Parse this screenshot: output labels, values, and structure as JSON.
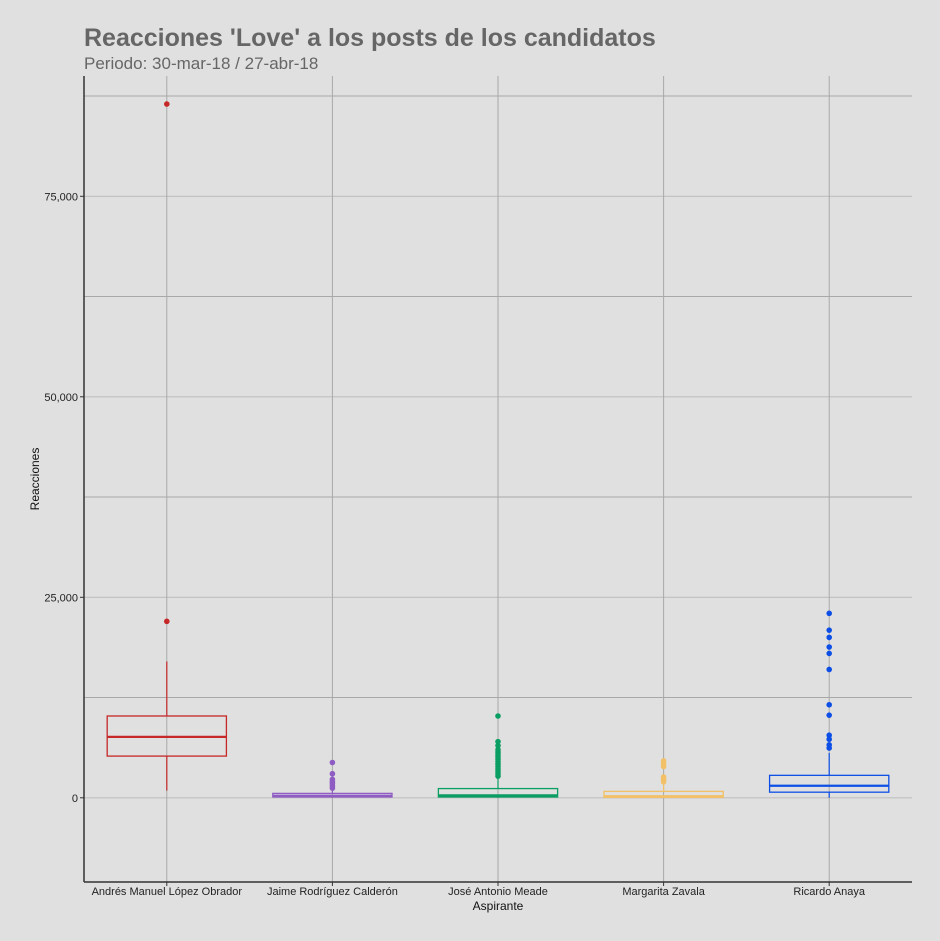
{
  "title": "Reacciones 'Love' a los posts de los candidatos",
  "subtitle": "Periodo: 30-mar-18 / 27-abr-18",
  "chart_data": {
    "type": "boxplot",
    "xlabel": "Aspirante",
    "ylabel": "Reacciones",
    "ylim": [
      -10500,
      90000
    ],
    "yticks": [
      0,
      25000,
      50000,
      75000
    ],
    "ytick_labels": [
      "0",
      "25,000",
      "50,000",
      "75,000"
    ],
    "grid": true,
    "legend": "none",
    "categories": [
      "Andrés Manuel López Obrador",
      "Jaime Rodríguez Calderón",
      "José Antonio Meade",
      "Margarita Zavala",
      "Ricardo Anaya"
    ],
    "series": [
      {
        "color": "#c62828",
        "q1": 5200,
        "median": 7600,
        "q3": 10200,
        "whisker_low": 900,
        "whisker_high": 17000,
        "outliers": [
          22000,
          86500
        ]
      },
      {
        "color": "#8e5cc2",
        "q1": 100,
        "median": 250,
        "q3": 550,
        "whisker_low": 0,
        "whisker_high": 1000,
        "outliers": [
          1200,
          1500,
          1800,
          2000,
          2300,
          3000,
          4400
        ]
      },
      {
        "color": "#0b9e63",
        "q1": 100,
        "median": 300,
        "q3": 1150,
        "whisker_low": 0,
        "whisker_high": 2500,
        "outliers": [
          2700,
          3000,
          3300,
          3600,
          3900,
          4200,
          4500,
          4800,
          5100,
          5400,
          5700,
          6000,
          6500,
          7000,
          10200
        ]
      },
      {
        "color": "#f2c066",
        "q1": 50,
        "median": 200,
        "q3": 800,
        "whisker_low": 0,
        "whisker_high": 1800,
        "outliers": [
          2000,
          2300,
          2600,
          3900,
          4300,
          4600
        ]
      },
      {
        "color": "#0d4fe6",
        "q1": 700,
        "median": 1500,
        "q3": 2800,
        "whisker_low": 0,
        "whisker_high": 5600,
        "outliers": [
          6200,
          6600,
          7300,
          7800,
          10300,
          11600,
          16000,
          18000,
          18800,
          20000,
          20900,
          23000
        ]
      }
    ]
  }
}
